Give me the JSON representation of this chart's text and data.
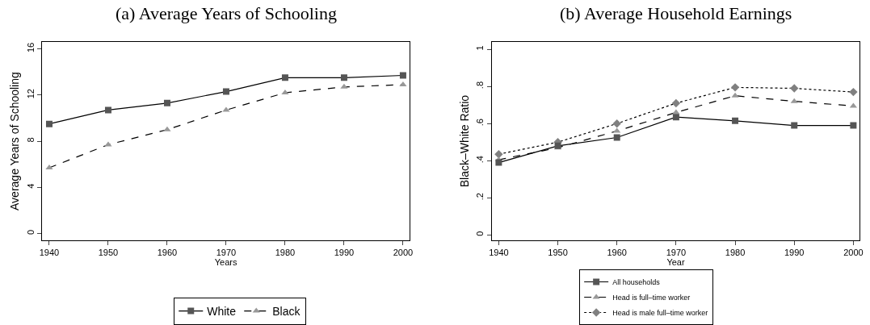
{
  "chart_data": [
    {
      "type": "line",
      "title": "(a) Average Years of Schooling",
      "xlabel": "Years",
      "ylabel": "Average Years of Schooling",
      "x": [
        1940,
        1950,
        1960,
        1970,
        1980,
        1990,
        2000
      ],
      "series": [
        {
          "name": "White",
          "color": "#555555",
          "marker": "square",
          "line_style": "solid",
          "values": [
            9.5,
            10.7,
            11.3,
            12.3,
            13.5,
            13.5,
            13.7
          ]
        },
        {
          "name": "Black",
          "color": "#999999",
          "marker": "triangle",
          "line_style": "dashed",
          "values": [
            5.7,
            7.7,
            9.0,
            10.7,
            12.2,
            12.7,
            12.9
          ]
        }
      ],
      "xlim": [
        1938.8,
        2001.1
      ],
      "xticks": [
        1940,
        1950,
        1960,
        1970,
        1980,
        1990,
        2000
      ],
      "ylim": [
        -0.6,
        16.6
      ],
      "yticks": [
        0,
        4,
        8,
        12,
        16
      ],
      "grid": false,
      "legend": "bottom"
    },
    {
      "type": "line",
      "title": "(b) Average Household Earnings",
      "xlabel": "Year",
      "ylabel": "Black–White Ratio",
      "x": [
        1940,
        1950,
        1960,
        1970,
        1980,
        1990,
        2000
      ],
      "series": [
        {
          "name": "All households",
          "color": "#555555",
          "marker": "square",
          "line_style": "solid",
          "values": [
            0.39,
            0.48,
            0.525,
            0.635,
            0.615,
            0.59,
            0.59
          ]
        },
        {
          "name": "Head is full–time worker",
          "color": "#999999",
          "marker": "triangle",
          "line_style": "dashed",
          "values": [
            0.405,
            0.47,
            0.56,
            0.66,
            0.75,
            0.72,
            0.695
          ]
        },
        {
          "name": "Head is male full–time worker",
          "color": "#808080",
          "marker": "diamond",
          "line_style": "dotted",
          "values": [
            0.435,
            0.5,
            0.6,
            0.71,
            0.795,
            0.79,
            0.77
          ]
        }
      ],
      "xlim": [
        1938.8,
        2001.1
      ],
      "xticks": [
        1940,
        1950,
        1960,
        1970,
        1980,
        1990,
        2000
      ],
      "ylim": [
        -0.03,
        1.04
      ],
      "yticks": [
        0,
        {
          "value": 0.2,
          "label": ".2"
        },
        {
          "value": 0.4,
          "label": ".4"
        },
        {
          "value": 0.6,
          "label": ".6"
        },
        {
          "value": 0.8,
          "label": ".8"
        },
        1
      ],
      "grid": false,
      "legend": "bottom"
    }
  ]
}
